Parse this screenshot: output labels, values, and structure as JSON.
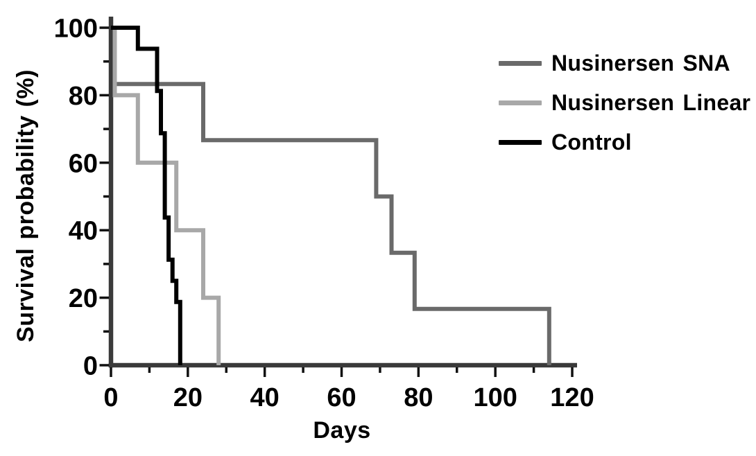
{
  "figure": {
    "background": "#ffffff"
  },
  "chart_data": {
    "type": "line",
    "subtype": "kaplan_meier_step",
    "title": "",
    "xlabel": "Days",
    "ylabel": "Survival probability (%)",
    "xlim": [
      0,
      120
    ],
    "ylim": [
      0,
      100
    ],
    "x_ticks_major": [
      0,
      20,
      40,
      60,
      80,
      100,
      120
    ],
    "x_ticks_minor": [
      10,
      30,
      50,
      70,
      90,
      110
    ],
    "y_ticks_major": [
      100,
      80,
      60,
      40,
      20,
      0
    ],
    "y_ticks_minor": [
      90,
      70,
      50,
      30,
      10
    ],
    "grid": false,
    "legend_position": "top-right",
    "series": [
      {
        "name": "Nusinersen SNA",
        "color": "#6a6a6a",
        "step_points": [
          [
            0,
            100
          ],
          [
            1,
            83.33
          ],
          [
            24,
            66.67
          ],
          [
            69,
            50
          ],
          [
            73,
            33.33
          ],
          [
            79,
            16.67
          ],
          [
            114,
            0
          ]
        ]
      },
      {
        "name": "Nusinersen Linear",
        "color": "#a8a8a8",
        "step_points": [
          [
            0,
            100
          ],
          [
            1,
            80
          ],
          [
            7,
            60
          ],
          [
            17,
            40
          ],
          [
            24,
            20
          ],
          [
            28,
            0
          ]
        ]
      },
      {
        "name": "Control",
        "color": "#000000",
        "step_points": [
          [
            0,
            100
          ],
          [
            7,
            93.75
          ],
          [
            12,
            81.25
          ],
          [
            13,
            68.75
          ],
          [
            14,
            43.75
          ],
          [
            15,
            31.25
          ],
          [
            16,
            25
          ],
          [
            17,
            18.75
          ],
          [
            18,
            0
          ]
        ]
      }
    ]
  },
  "styles": {
    "axis_color": "#3a3a3a",
    "tick_color": "#111111",
    "label_color": "#000000",
    "series_stroke_width": 6
  }
}
